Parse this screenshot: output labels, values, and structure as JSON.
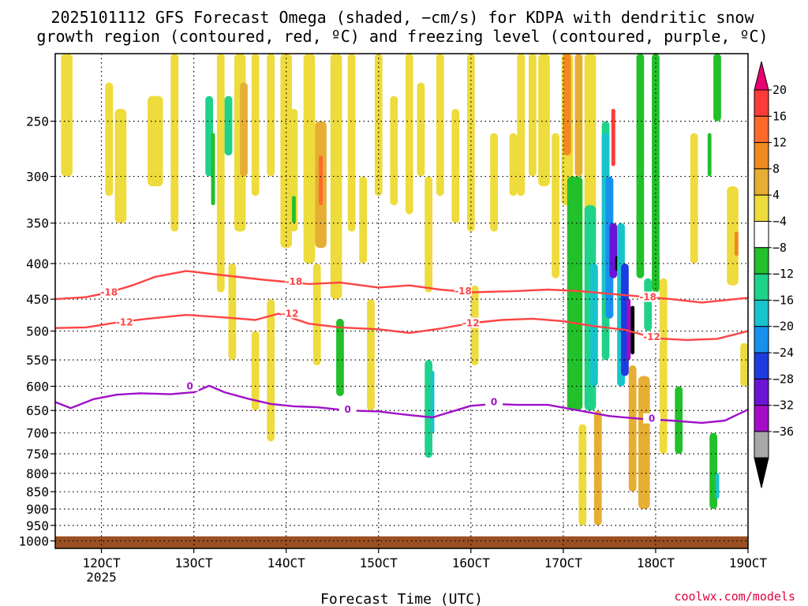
{
  "chart_data": {
    "type": "heatmap",
    "title_line1": "2025101112 GFS Forecast Omega (shaded, −cm/s) for KDPA with dendritic snow",
    "title_line2": "growth region (contoured, red, ºC) and freezing level (contoured, purple, ºC)",
    "xlabel": "Forecast Time (UTC)",
    "x_ticks": [
      {
        "hour": 12,
        "label": "12OCT",
        "sub": "2025"
      },
      {
        "hour": 36,
        "label": "13OCT",
        "sub": ""
      },
      {
        "hour": 60,
        "label": "14OCT",
        "sub": ""
      },
      {
        "hour": 84,
        "label": "15OCT",
        "sub": ""
      },
      {
        "hour": 108,
        "label": "16OCT",
        "sub": ""
      },
      {
        "hour": 132,
        "label": "17OCT",
        "sub": ""
      },
      {
        "hour": 156,
        "label": "18OCT",
        "sub": ""
      },
      {
        "hour": 180,
        "label": "19OCT",
        "sub": ""
      }
    ],
    "x_range_hours": [
      0,
      180
    ],
    "y_ticks": [
      "250",
      "300",
      "350",
      "400",
      "450",
      "500",
      "550",
      "600",
      "650",
      "700",
      "750",
      "800",
      "850",
      "900",
      "950",
      "1000"
    ],
    "y_range_hpa": [
      200,
      1025
    ],
    "ground_level_hpa": 985,
    "colorbar": {
      "labels": [
        "20",
        "16",
        "12",
        "8",
        "4",
        "−4",
        "−8",
        "−12",
        "−16",
        "−20",
        "−24",
        "−28",
        "−32",
        "−36"
      ],
      "colors": [
        "#e8006f",
        "#ff3a3a",
        "#ff6a2a",
        "#f08a1e",
        "#e6ae32",
        "#eedb3c",
        "#ffffff",
        "#22c02a",
        "#1fd28a",
        "#18c4cc",
        "#1890ee",
        "#1c3be0",
        "#6a14d6",
        "#a40cc8",
        "#a8a8a8",
        "#000000"
      ]
    },
    "contours": [
      {
        "name": "-18C",
        "label": "-18",
        "color": "#ff4444",
        "points": [
          [
            0,
            450
          ],
          [
            8,
            447
          ],
          [
            14,
            440
          ],
          [
            20,
            430
          ],
          [
            26,
            418
          ],
          [
            34,
            410
          ],
          [
            44,
            416
          ],
          [
            54,
            422
          ],
          [
            66,
            428
          ],
          [
            74,
            426
          ],
          [
            84,
            433
          ],
          [
            92,
            430
          ],
          [
            100,
            436
          ],
          [
            108,
            440
          ],
          [
            120,
            438
          ],
          [
            128,
            436
          ],
          [
            136,
            438
          ],
          [
            144,
            442
          ],
          [
            152,
            446
          ],
          [
            160,
            450
          ],
          [
            168,
            455
          ],
          [
            180,
            448
          ]
        ],
        "labels_at": [
          [
            14,
            440
          ],
          [
            62,
            425
          ],
          [
            106,
            438
          ],
          [
            154,
            447
          ]
        ]
      },
      {
        "name": "-12C",
        "label": "-12",
        "color": "#ff4444",
        "points": [
          [
            0,
            495
          ],
          [
            8,
            494
          ],
          [
            16,
            486
          ],
          [
            24,
            480
          ],
          [
            34,
            474
          ],
          [
            44,
            478
          ],
          [
            52,
            482
          ],
          [
            58,
            472
          ],
          [
            66,
            488
          ],
          [
            74,
            494
          ],
          [
            84,
            497
          ],
          [
            92,
            503
          ],
          [
            100,
            496
          ],
          [
            108,
            487
          ],
          [
            116,
            482
          ],
          [
            124,
            480
          ],
          [
            132,
            484
          ],
          [
            140,
            492
          ],
          [
            148,
            498
          ],
          [
            156,
            512
          ],
          [
            164,
            515
          ],
          [
            172,
            513
          ],
          [
            180,
            500
          ]
        ],
        "labels_at": [
          [
            18,
            486
          ],
          [
            61,
            472
          ],
          [
            108,
            487
          ],
          [
            155,
            510
          ]
        ]
      },
      {
        "name": "0C",
        "label": "0",
        "color": "#a010c8",
        "points": [
          [
            0,
            632
          ],
          [
            4,
            645
          ],
          [
            10,
            626
          ],
          [
            16,
            617
          ],
          [
            22,
            614
          ],
          [
            30,
            616
          ],
          [
            36,
            612
          ],
          [
            40,
            599
          ],
          [
            44,
            612
          ],
          [
            50,
            625
          ],
          [
            56,
            636
          ],
          [
            62,
            641
          ],
          [
            68,
            643
          ],
          [
            76,
            650
          ],
          [
            84,
            652
          ],
          [
            92,
            660
          ],
          [
            98,
            665
          ],
          [
            104,
            650
          ],
          [
            108,
            640
          ],
          [
            114,
            636
          ],
          [
            120,
            638
          ],
          [
            128,
            638
          ],
          [
            136,
            650
          ],
          [
            144,
            662
          ],
          [
            152,
            668
          ],
          [
            160,
            672
          ],
          [
            168,
            677
          ],
          [
            174,
            672
          ],
          [
            180,
            648
          ]
        ],
        "labels_at": [
          [
            35,
            600
          ],
          [
            76,
            648
          ],
          [
            114,
            632
          ],
          [
            155,
            668
          ]
        ]
      }
    ],
    "shaded_regions": [
      {
        "t": 3,
        "p0": 200,
        "p1": 300,
        "w": 3,
        "c": "#eedb3c"
      },
      {
        "t": 14,
        "p0": 220,
        "p1": 320,
        "w": 2,
        "c": "#eedb3c"
      },
      {
        "t": 17,
        "p0": 240,
        "p1": 350,
        "w": 3,
        "c": "#eedb3c"
      },
      {
        "t": 26,
        "p0": 230,
        "p1": 310,
        "w": 4,
        "c": "#eedb3c"
      },
      {
        "t": 31,
        "p0": 200,
        "p1": 360,
        "w": 2,
        "c": "#eedb3c"
      },
      {
        "t": 40,
        "p0": 230,
        "p1": 300,
        "w": 2,
        "c": "#1fd28a"
      },
      {
        "t": 41,
        "p0": 260,
        "p1": 330,
        "w": 1,
        "c": "#22c02a"
      },
      {
        "t": 43,
        "p0": 200,
        "p1": 440,
        "w": 2,
        "c": "#eedb3c"
      },
      {
        "t": 45,
        "p0": 230,
        "p1": 280,
        "w": 2,
        "c": "#1fd28a"
      },
      {
        "t": 46,
        "p0": 400,
        "p1": 550,
        "w": 2,
        "c": "#eedb3c"
      },
      {
        "t": 48,
        "p0": 200,
        "p1": 360,
        "w": 3,
        "c": "#eedb3c"
      },
      {
        "t": 49,
        "p0": 220,
        "p1": 300,
        "w": 2,
        "c": "#e6ae32"
      },
      {
        "t": 52,
        "p0": 200,
        "p1": 320,
        "w": 2,
        "c": "#eedb3c"
      },
      {
        "t": 52,
        "p0": 500,
        "p1": 650,
        "w": 2,
        "c": "#eedb3c"
      },
      {
        "t": 56,
        "p0": 450,
        "p1": 720,
        "w": 2,
        "c": "#eedb3c"
      },
      {
        "t": 56,
        "p0": 200,
        "p1": 300,
        "w": 2,
        "c": "#eedb3c"
      },
      {
        "t": 60,
        "p0": 200,
        "p1": 380,
        "w": 3,
        "c": "#eedb3c"
      },
      {
        "t": 62,
        "p0": 240,
        "p1": 360,
        "w": 2,
        "c": "#eedb3c"
      },
      {
        "t": 62,
        "p0": 320,
        "p1": 350,
        "w": 1,
        "c": "#22c02a"
      },
      {
        "t": 66,
        "p0": 200,
        "p1": 400,
        "w": 3,
        "c": "#eedb3c"
      },
      {
        "t": 68,
        "p0": 400,
        "p1": 560,
        "w": 2,
        "c": "#eedb3c"
      },
      {
        "t": 69,
        "p0": 250,
        "p1": 380,
        "w": 3,
        "c": "#e6ae32"
      },
      {
        "t": 69,
        "p0": 280,
        "p1": 330,
        "w": 1,
        "c": "#ff6a2a"
      },
      {
        "t": 73,
        "p0": 200,
        "p1": 450,
        "w": 3,
        "c": "#eedb3c"
      },
      {
        "t": 74,
        "p0": 480,
        "p1": 620,
        "w": 2,
        "c": "#22c02a"
      },
      {
        "t": 77,
        "p0": 200,
        "p1": 360,
        "w": 2,
        "c": "#eedb3c"
      },
      {
        "t": 80,
        "p0": 300,
        "p1": 400,
        "w": 2,
        "c": "#eedb3c"
      },
      {
        "t": 82,
        "p0": 450,
        "p1": 650,
        "w": 2,
        "c": "#eedb3c"
      },
      {
        "t": 84,
        "p0": 200,
        "p1": 320,
        "w": 2,
        "c": "#eedb3c"
      },
      {
        "t": 88,
        "p0": 230,
        "p1": 330,
        "w": 2,
        "c": "#eedb3c"
      },
      {
        "t": 92,
        "p0": 200,
        "p1": 340,
        "w": 2,
        "c": "#eedb3c"
      },
      {
        "t": 95,
        "p0": 220,
        "p1": 300,
        "w": 2,
        "c": "#eedb3c"
      },
      {
        "t": 97,
        "p0": 300,
        "p1": 440,
        "w": 2,
        "c": "#eedb3c"
      },
      {
        "t": 97,
        "p0": 550,
        "p1": 760,
        "w": 2,
        "c": "#1fd28a"
      },
      {
        "t": 98,
        "p0": 570,
        "p1": 700,
        "w": 1,
        "c": "#18c4cc"
      },
      {
        "t": 100,
        "p0": 200,
        "p1": 320,
        "w": 2,
        "c": "#eedb3c"
      },
      {
        "t": 104,
        "p0": 240,
        "p1": 350,
        "w": 2,
        "c": "#eedb3c"
      },
      {
        "t": 108,
        "p0": 200,
        "p1": 360,
        "w": 2,
        "c": "#eedb3c"
      },
      {
        "t": 109,
        "p0": 430,
        "p1": 560,
        "w": 2,
        "c": "#eedb3c"
      },
      {
        "t": 114,
        "p0": 260,
        "p1": 360,
        "w": 2,
        "c": "#eedb3c"
      },
      {
        "t": 119,
        "p0": 260,
        "p1": 320,
        "w": 2,
        "c": "#eedb3c"
      },
      {
        "t": 121,
        "p0": 200,
        "p1": 320,
        "w": 2,
        "c": "#eedb3c"
      },
      {
        "t": 124,
        "p0": 200,
        "p1": 300,
        "w": 2,
        "c": "#eedb3c"
      },
      {
        "t": 127,
        "p0": 200,
        "p1": 310,
        "w": 3,
        "c": "#eedb3c"
      },
      {
        "t": 130,
        "p0": 260,
        "p1": 420,
        "w": 2,
        "c": "#eedb3c"
      },
      {
        "t": 133,
        "p0": 200,
        "p1": 330,
        "w": 3,
        "c": "#eedb3c"
      },
      {
        "t": 133,
        "p0": 200,
        "p1": 280,
        "w": 2,
        "c": "#f08a1e"
      },
      {
        "t": 135,
        "p0": 300,
        "p1": 650,
        "w": 4,
        "c": "#22c02a"
      },
      {
        "t": 136,
        "p0": 200,
        "p1": 300,
        "w": 2,
        "c": "#e6ae32"
      },
      {
        "t": 137,
        "p0": 680,
        "p1": 950,
        "w": 2,
        "c": "#eedb3c"
      },
      {
        "t": 139,
        "p0": 200,
        "p1": 380,
        "w": 3,
        "c": "#eedb3c"
      },
      {
        "t": 139,
        "p0": 330,
        "p1": 650,
        "w": 3,
        "c": "#1fd28a"
      },
      {
        "t": 140,
        "p0": 400,
        "p1": 600,
        "w": 2,
        "c": "#18c4cc"
      },
      {
        "t": 141,
        "p0": 650,
        "p1": 950,
        "w": 2,
        "c": "#e6ae32"
      },
      {
        "t": 143,
        "p0": 250,
        "p1": 550,
        "w": 2,
        "c": "#1fd28a"
      },
      {
        "t": 143,
        "p0": 260,
        "p1": 450,
        "w": 2,
        "c": "#18c4cc"
      },
      {
        "t": 144,
        "p0": 300,
        "p1": 480,
        "w": 2,
        "c": "#1890ee"
      },
      {
        "t": 145,
        "p0": 350,
        "p1": 420,
        "w": 2,
        "c": "#6a14d6"
      },
      {
        "t": 145,
        "p0": 240,
        "p1": 290,
        "w": 1,
        "c": "#ff3a3a"
      },
      {
        "t": 146,
        "p0": 390,
        "p1": 410,
        "w": 1,
        "c": "#000000"
      },
      {
        "t": 147,
        "p0": 350,
        "p1": 600,
        "w": 2,
        "c": "#18c4cc"
      },
      {
        "t": 148,
        "p0": 400,
        "p1": 580,
        "w": 2,
        "c": "#1c3be0"
      },
      {
        "t": 149,
        "p0": 450,
        "p1": 550,
        "w": 1,
        "c": "#a40cc8"
      },
      {
        "t": 150,
        "p0": 460,
        "p1": 540,
        "w": 1,
        "c": "#000000"
      },
      {
        "t": 150,
        "p0": 560,
        "p1": 850,
        "w": 2,
        "c": "#e6ae32"
      },
      {
        "t": 152,
        "p0": 200,
        "p1": 420,
        "w": 2,
        "c": "#22c02a"
      },
      {
        "t": 153,
        "p0": 580,
        "p1": 900,
        "w": 3,
        "c": "#e6ae32"
      },
      {
        "t": 154,
        "p0": 420,
        "p1": 500,
        "w": 2,
        "c": "#1fd28a"
      },
      {
        "t": 156,
        "p0": 200,
        "p1": 440,
        "w": 2,
        "c": "#22c02a"
      },
      {
        "t": 158,
        "p0": 420,
        "p1": 750,
        "w": 2,
        "c": "#eedb3c"
      },
      {
        "t": 162,
        "p0": 600,
        "p1": 750,
        "w": 2,
        "c": "#22c02a"
      },
      {
        "t": 166,
        "p0": 260,
        "p1": 400,
        "w": 2,
        "c": "#eedb3c"
      },
      {
        "t": 170,
        "p0": 260,
        "p1": 300,
        "w": 1,
        "c": "#22c02a"
      },
      {
        "t": 171,
        "p0": 700,
        "p1": 900,
        "w": 2,
        "c": "#22c02a"
      },
      {
        "t": 172,
        "p0": 800,
        "p1": 870,
        "w": 1,
        "c": "#18c4cc"
      },
      {
        "t": 172,
        "p0": 200,
        "p1": 250,
        "w": 2,
        "c": "#22c02a"
      },
      {
        "t": 176,
        "p0": 310,
        "p1": 430,
        "w": 3,
        "c": "#eedb3c"
      },
      {
        "t": 177,
        "p0": 360,
        "p1": 390,
        "w": 1,
        "c": "#f08a1e"
      },
      {
        "t": 179,
        "p0": 520,
        "p1": 600,
        "w": 2,
        "c": "#eedb3c"
      }
    ],
    "watermark": "coolwx.com/models"
  }
}
